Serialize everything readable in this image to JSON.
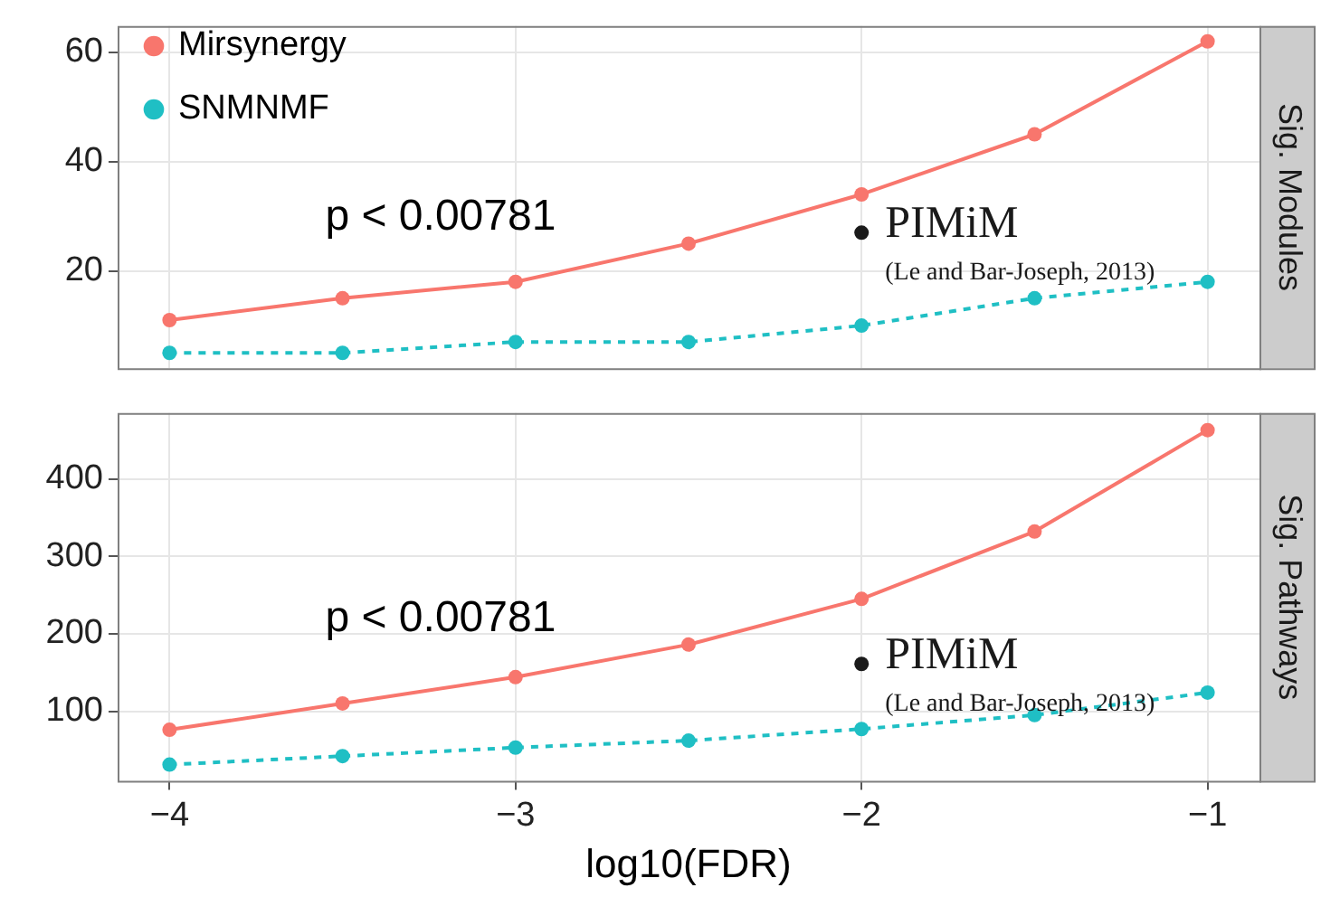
{
  "chart_data": [
    {
      "type": "line",
      "title": "Sig. Modules",
      "x": [
        -4,
        -3.5,
        -3,
        -2.5,
        -2,
        -1.5,
        -1
      ],
      "xlim": [
        -4.15,
        -0.85
      ],
      "xticks": [
        -4,
        -3,
        -2,
        -1
      ],
      "ylim": [
        2.2,
        64.8
      ],
      "yticks": [
        20,
        40,
        60
      ],
      "grid": true,
      "legend": "top left",
      "marker": "circle",
      "tick_labels": "y",
      "annotations": [
        "p < 0.00781",
        "(Le and Bar-Joseph, 2013)"
      ],
      "series": [
        {
          "name": "Mirsynergy",
          "color": "#f8766d",
          "line_style": "solid",
          "values": [
            11,
            15,
            18,
            25,
            34,
            45,
            62
          ]
        },
        {
          "name": "SNMNMF",
          "color": "#1fbfc4",
          "line_style": "dashed",
          "values": [
            5,
            5,
            7,
            7,
            10,
            15,
            18
          ]
        },
        {
          "name": "PIMiM",
          "type": "scatter",
          "color": "#1a1a1a",
          "x": [
            -2
          ],
          "values": [
            27
          ]
        }
      ]
    },
    {
      "type": "line",
      "title": "Sig. Pathways",
      "xlabel": "log10(FDR)",
      "x": [
        -4,
        -3.5,
        -3,
        -2.5,
        -2,
        -1.5,
        -1
      ],
      "xlim": [
        -4.15,
        -0.85
      ],
      "xticks": [
        -4,
        -3,
        -2,
        -1
      ],
      "ylim": [
        10,
        485
      ],
      "yticks": [
        100,
        200,
        300,
        400
      ],
      "grid": true,
      "legend": false,
      "marker": "circle",
      "annotations": [
        "p < 0.00781",
        "(Le and Bar-Joseph, 2013)"
      ],
      "series": [
        {
          "color": "#f8766d",
          "line_style": "solid",
          "values": [
            76,
            110,
            144,
            186,
            245,
            332,
            463
          ]
        },
        {
          "color": "#1fbfc4",
          "line_style": "dashed",
          "values": [
            31,
            42,
            53,
            62,
            77,
            95,
            124
          ]
        },
        {
          "name": "PIMiM",
          "type": "scatter",
          "color": "#1a1a1a",
          "x": [
            -2
          ],
          "values": [
            161
          ]
        }
      ]
    }
  ]
}
